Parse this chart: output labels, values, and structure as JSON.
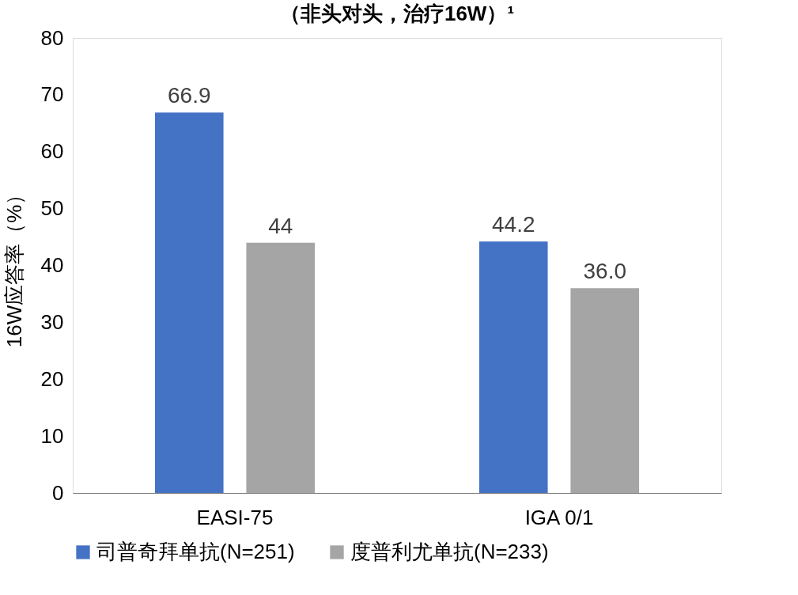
{
  "chart_data": {
    "type": "bar",
    "title": "（非头对头，治疗16W）¹",
    "ylabel": "16W应答率（%）",
    "categories": [
      "EASI-75",
      "IGA 0/1"
    ],
    "series": [
      {
        "name": "司普奇拜单抗(N=251)",
        "color": "#4472c4",
        "values": [
          66.9,
          44.2
        ],
        "value_labels": [
          "66.9",
          "44.2"
        ]
      },
      {
        "name": "度普利尤单抗(N=233)",
        "color": "#a5a5a5",
        "values": [
          44,
          36.0
        ],
        "value_labels": [
          "44",
          "36.0"
        ]
      }
    ],
    "ylim": [
      0,
      80
    ],
    "yticks": [
      0,
      10,
      20,
      30,
      40,
      50,
      60,
      70,
      80
    ],
    "grid": false,
    "legend": "bottom"
  }
}
